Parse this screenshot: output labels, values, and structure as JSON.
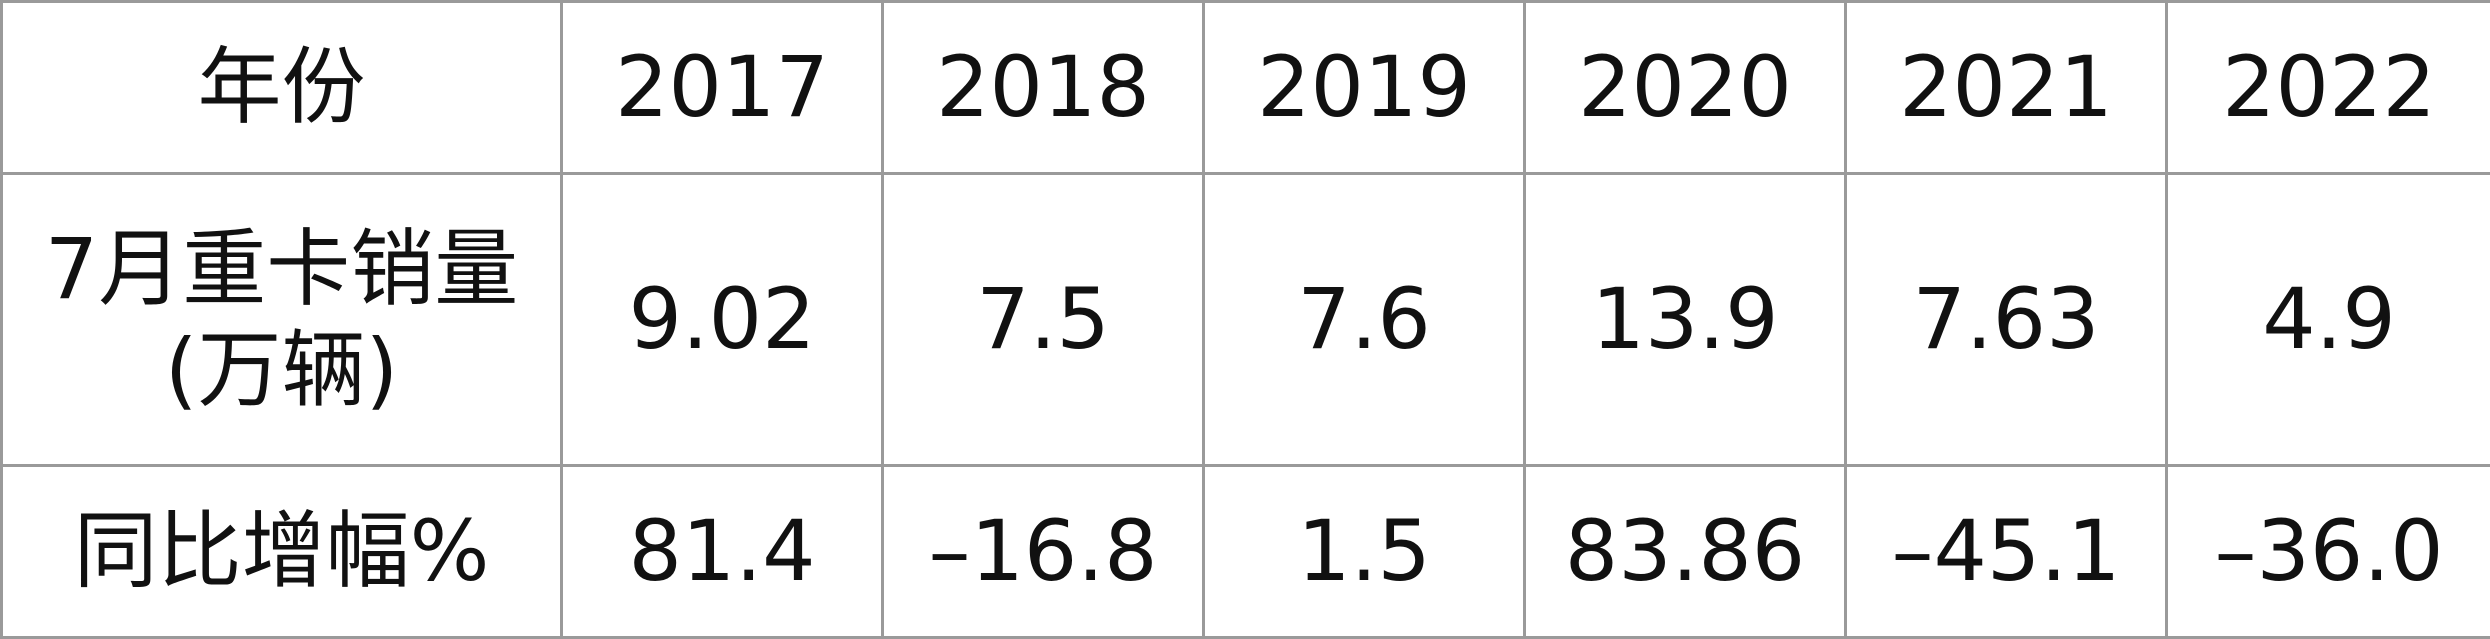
{
  "table": {
    "header": [
      "年份",
      "2017",
      "2018",
      "2019",
      "2020",
      "2021",
      "2022"
    ],
    "rows": [
      [
        [
          "7月重卡销量",
          "(万辆)"
        ],
        "9.02",
        "7.5",
        "7.6",
        "13.9",
        "7.63",
        "4.9"
      ],
      [
        [
          "同比增幅%"
        ],
        "81.4",
        "–16.8",
        "1.5",
        "83.86",
        "–45.1",
        "–36.0"
      ]
    ]
  }
}
